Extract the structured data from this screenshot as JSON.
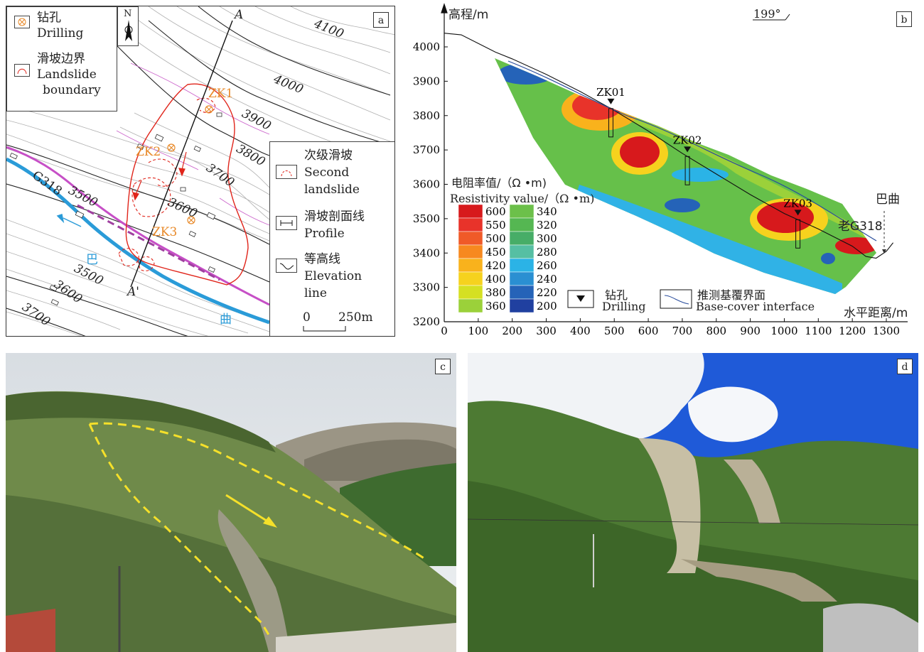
{
  "panel_a": {
    "letter": "a",
    "north": "N",
    "legend": {
      "drilling_cn": "钻孔",
      "drilling_en": "Drilling",
      "boundary_cn": "滑坡边界",
      "boundary_en1": "Landslide",
      "boundary_en2": "boundary"
    },
    "legend2": {
      "second_cn": "次级滑坡",
      "second_en1": "Second",
      "second_en2": "landslide",
      "profile_cn": "滑坡剖面线",
      "profile_en": "Profile",
      "contour_cn": "等高线",
      "contour_en1": "Elevation",
      "contour_en2": "line",
      "scale_0": "0",
      "scale_250": "250m"
    },
    "labels": {
      "A": "A",
      "A_prime": "A'",
      "ZK1": "ZK1",
      "ZK2": "ZK2",
      "ZK3": "ZK3",
      "G318": "G318",
      "river_1": "巴",
      "river_2": "曲"
    },
    "contours": [
      "4100",
      "4000",
      "3900",
      "3800",
      "3700",
      "3600",
      "3500",
      "3500",
      "3600",
      "3700"
    ]
  },
  "panel_b": {
    "letter": "b",
    "ylabel": "高程/m",
    "xlabel": "水平距离/m",
    "direction": "199°",
    "legend_title_cn": "电阻率值/（Ω •m)",
    "legend_title_en": "Resistivity value/（Ω •m)",
    "scale_left": [
      "600",
      "550",
      "500",
      "450",
      "420",
      "400",
      "380",
      "360"
    ],
    "scale_right": [
      "340",
      "320",
      "300",
      "280",
      "260",
      "240",
      "220",
      "200"
    ],
    "scale_colors_left": [
      "#d7191c",
      "#e8332a",
      "#f05a28",
      "#f7891f",
      "#f9b21c",
      "#f6d21e",
      "#d5e022",
      "#9bd13a"
    ],
    "scale_colors_right": [
      "#6cc04a",
      "#55b752",
      "#47ad67",
      "#56bfa3",
      "#2bb3e6",
      "#2a8fd2",
      "#2563b8",
      "#2040a0"
    ],
    "boreholes": [
      "ZK01",
      "ZK02",
      "ZK03"
    ],
    "place_1": "巴曲",
    "place_2": "老G318",
    "legend_drill_cn": "钻孔",
    "legend_drill_en": "Drilling",
    "legend_iface_cn": "推测基覆界面",
    "legend_iface_en": "Base-cover interface"
  },
  "chart_data": {
    "type": "area",
    "title": "",
    "xlabel": "水平距离/m",
    "ylabel": "高程/m",
    "xlim": [
      0,
      1300
    ],
    "ylim": [
      3200,
      4000
    ],
    "x_ticks": [
      0,
      100,
      200,
      300,
      400,
      500,
      600,
      700,
      800,
      900,
      1000,
      1100,
      1200,
      1300
    ],
    "y_ticks": [
      3200,
      3300,
      3400,
      3500,
      3600,
      3700,
      3800,
      3900,
      4000
    ],
    "surface_profile": [
      [
        0,
        4040
      ],
      [
        50,
        4035
      ],
      [
        100,
        4010
      ],
      [
        150,
        3985
      ],
      [
        200,
        3965
      ],
      [
        300,
        3920
      ],
      [
        400,
        3870
      ],
      [
        500,
        3815
      ],
      [
        600,
        3755
      ],
      [
        700,
        3690
      ],
      [
        800,
        3630
      ],
      [
        900,
        3570
      ],
      [
        1000,
        3515
      ],
      [
        1100,
        3470
      ],
      [
        1200,
        3420
      ],
      [
        1240,
        3390
      ],
      [
        1270,
        3385
      ],
      [
        1300,
        3405
      ],
      [
        1320,
        3430
      ]
    ],
    "boreholes": [
      {
        "name": "ZK01",
        "x": 490
      },
      {
        "name": "ZK02",
        "x": 715
      },
      {
        "name": "ZK03",
        "x": 1040
      }
    ]
  },
  "panel_c": {
    "letter": "c"
  },
  "panel_d": {
    "letter": "d"
  }
}
